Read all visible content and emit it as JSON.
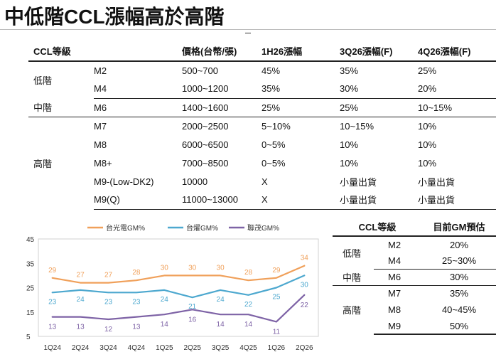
{
  "title": "中低階CCL漲幅高於高階",
  "main_table": {
    "headers": [
      "CCL等級",
      "",
      "價格(台幣/張)",
      "1H26漲幅",
      "3Q26漲幅(F)",
      "4Q26漲幅(F)"
    ],
    "groups": [
      {
        "label": "低階",
        "rows": [
          [
            "M2",
            "500~700",
            "45%",
            "35%",
            "25%"
          ],
          [
            "M4",
            "1000~1200",
            "35%",
            "30%",
            "20%"
          ]
        ]
      },
      {
        "label": "中階",
        "rows": [
          [
            "M6",
            "1400~1600",
            "25%",
            "25%",
            "10~15%"
          ]
        ]
      },
      {
        "label": "高階",
        "rows": [
          [
            "M7",
            "2000~2500",
            "5~10%",
            "10~15%",
            "10%"
          ],
          [
            "M8",
            "6000~6500",
            "0~5%",
            "10%",
            "10%"
          ],
          [
            "M8+",
            "7000~8500",
            "0~5%",
            "10%",
            "10%"
          ],
          [
            "M9-(Low-DK2)",
            "10000",
            "X",
            "小量出貨",
            "小量出貨"
          ],
          [
            "M9(Q)",
            "11000~13000",
            "X",
            "小量出貨",
            "小量出貨"
          ]
        ]
      }
    ]
  },
  "gm_table": {
    "headers": [
      "CCL等級",
      "目前GM預估"
    ],
    "groups": [
      {
        "label": "低階",
        "rows": [
          [
            "M2",
            "20%"
          ],
          [
            "M4",
            "25~30%"
          ]
        ]
      },
      {
        "label": "中階",
        "rows": [
          [
            "M6",
            "30%"
          ]
        ]
      },
      {
        "label": "高階",
        "rows": [
          [
            "M7",
            "35%"
          ],
          [
            "M8",
            "40~45%"
          ],
          [
            "M9",
            "50%"
          ]
        ]
      }
    ]
  },
  "chart_data": {
    "type": "line",
    "categories": [
      "1Q24",
      "2Q24",
      "3Q24",
      "4Q24",
      "1Q25",
      "2Q25",
      "3Q25",
      "4Q25",
      "1Q26",
      "2Q26"
    ],
    "ylim": [
      5,
      45
    ],
    "yticks": [
      5,
      15,
      25,
      35,
      45
    ],
    "ytick_labels": [
      "5",
      "15",
      "25",
      "35",
      "45"
    ],
    "grid": false,
    "legend_position": "top",
    "series": [
      {
        "name": "台光電GM%",
        "color": "#F0A05A",
        "values": [
          29,
          27,
          27,
          28,
          30,
          30,
          30,
          28,
          29,
          34
        ]
      },
      {
        "name": "台燿GM%",
        "color": "#4DA8CF",
        "values": [
          23,
          24,
          23,
          23,
          24,
          21,
          24,
          22,
          25,
          30
        ]
      },
      {
        "name": "聯茂GM%",
        "color": "#7E63A6",
        "values": [
          13,
          13,
          12,
          13,
          14,
          16,
          14,
          14,
          11,
          22
        ]
      }
    ]
  }
}
